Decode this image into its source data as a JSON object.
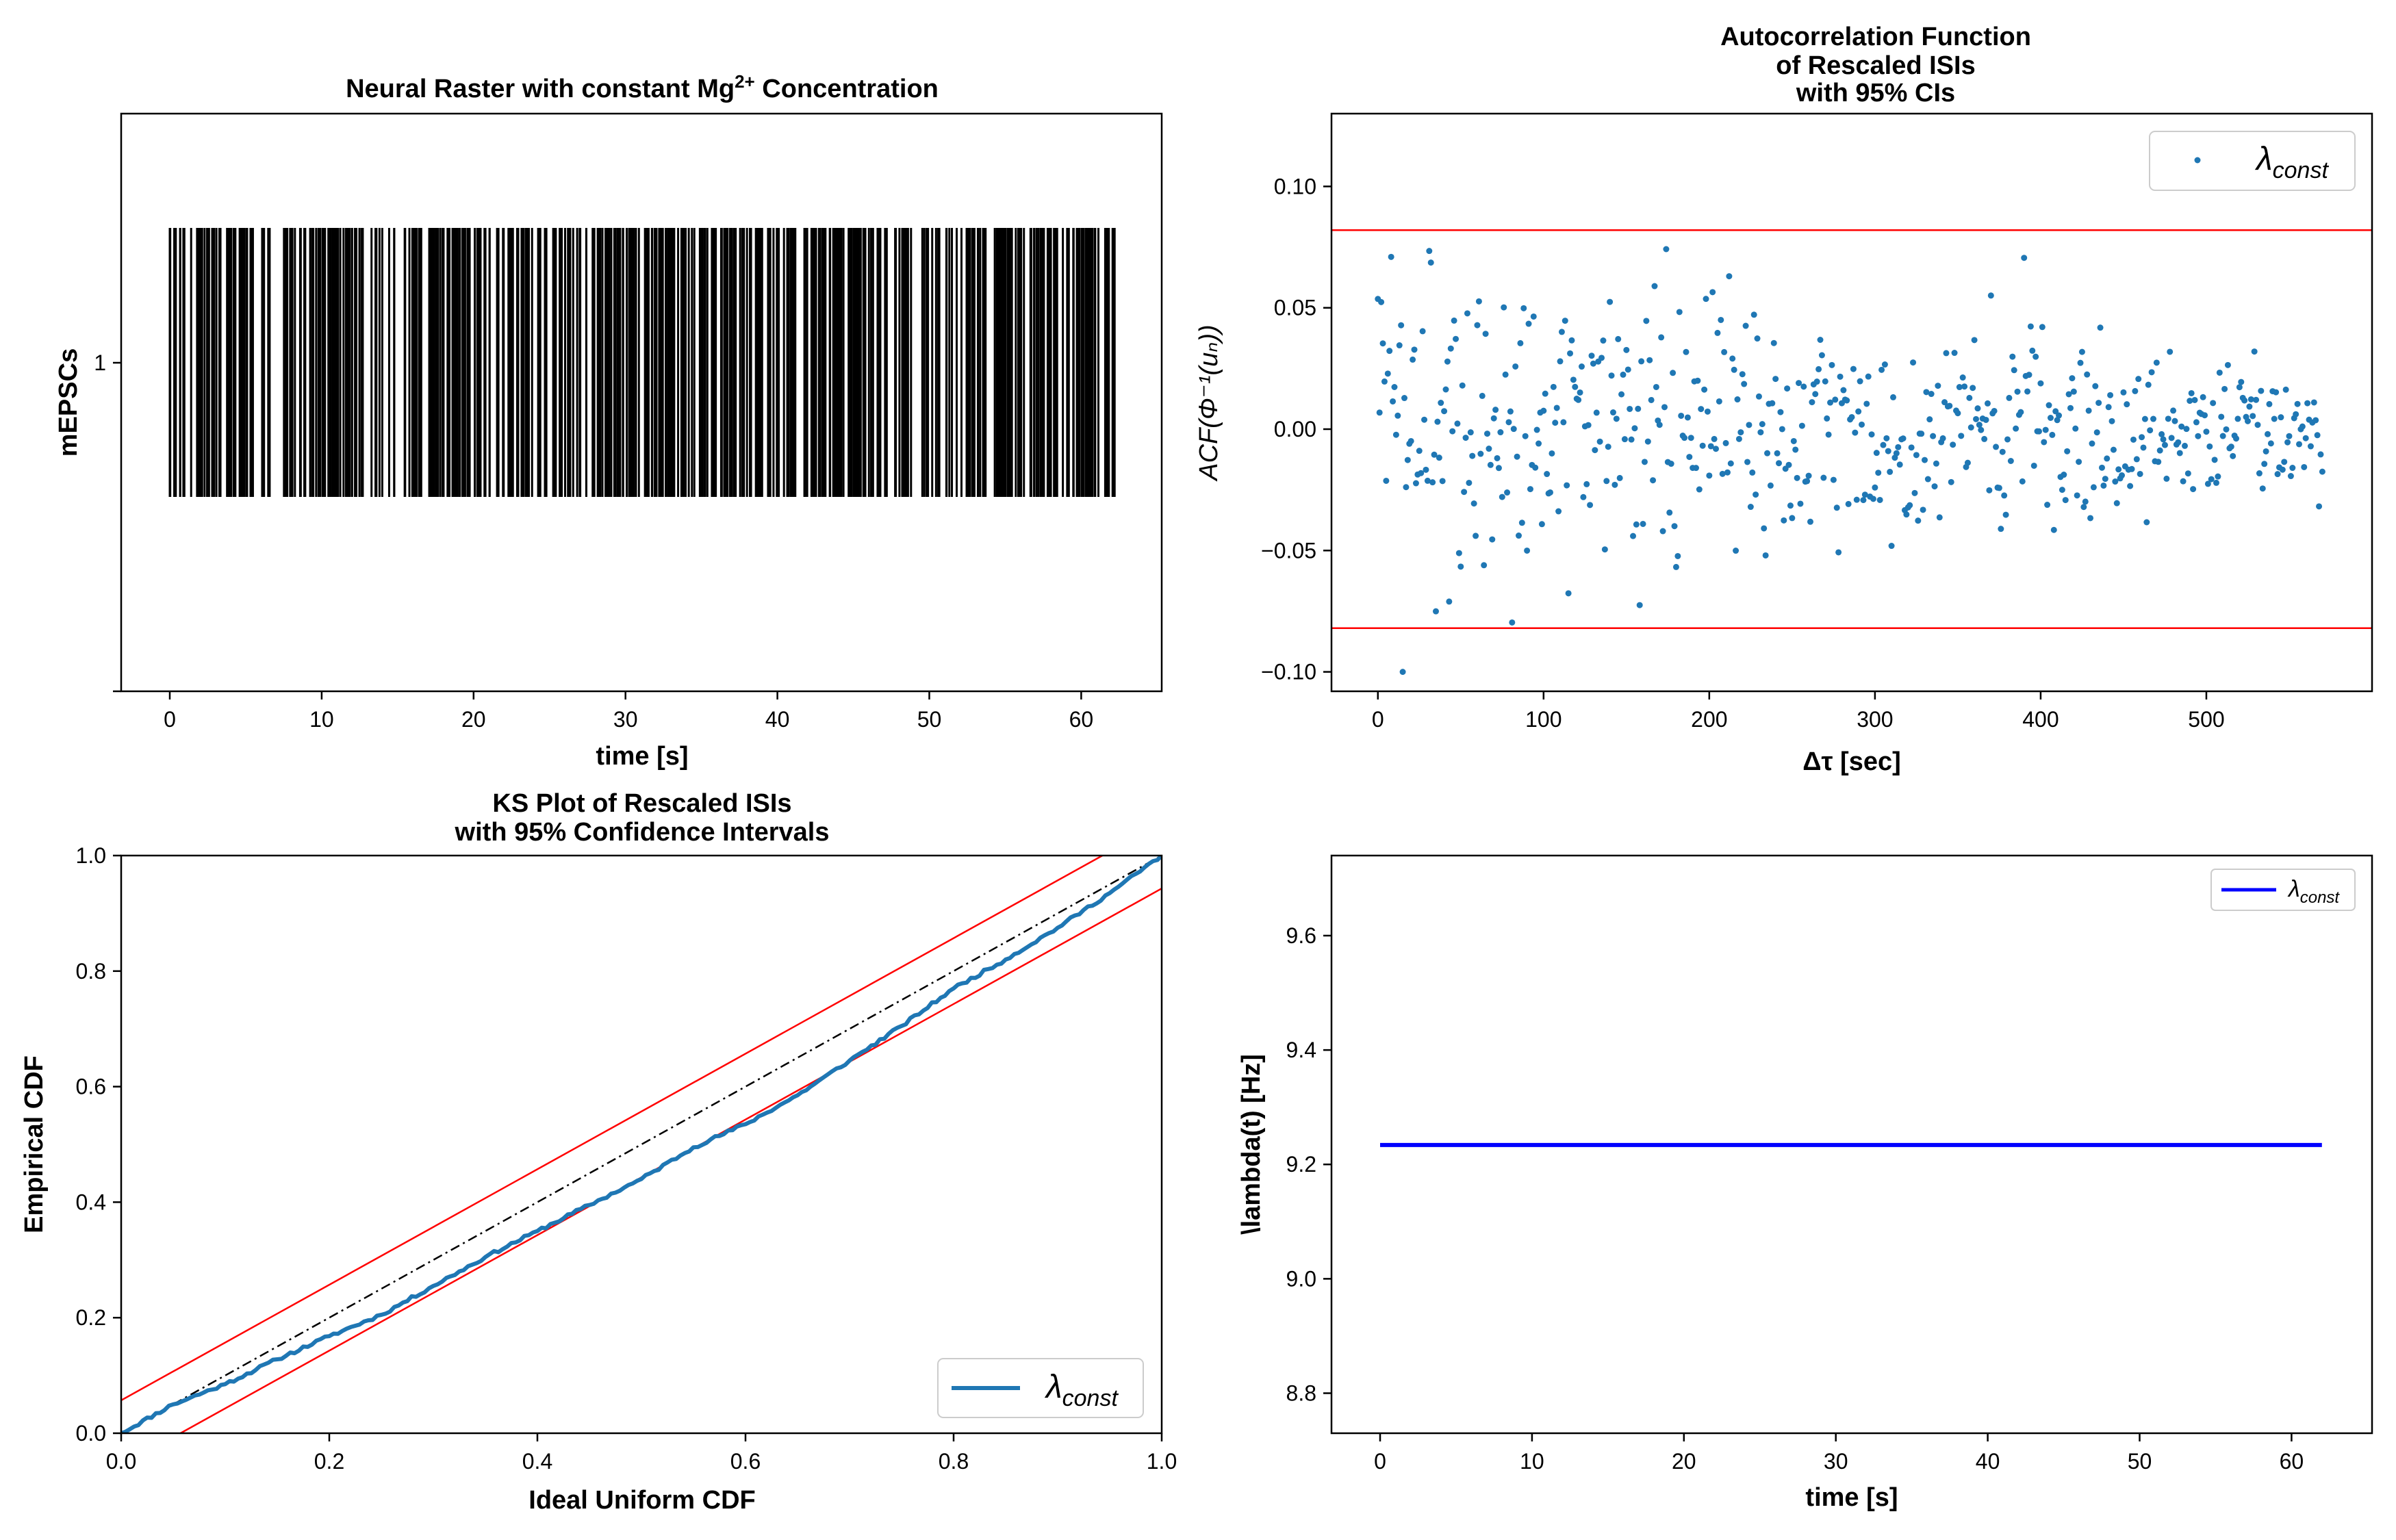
{
  "chart_data": [
    {
      "id": "raster",
      "type": "raster",
      "title": "Neural Raster with constant Mg²⁺ Concentration",
      "title_main": "Neural Raster with constant Mg",
      "title_sup": "2+",
      "title_end": " Concentration",
      "xlabel": "time [s]",
      "ylabel": "mEPSCs",
      "xlim": [
        -3.2,
        65.3
      ],
      "xticks": [
        0,
        10,
        20,
        30,
        40,
        50,
        60
      ],
      "yticks": [
        1
      ],
      "spike_span": [
        0,
        62.2
      ],
      "color": "#000000"
    },
    {
      "id": "acf",
      "type": "scatter",
      "title_lines": [
        "Autocorrelation Function",
        "of Rescaled ISIs",
        "with 95% CIs"
      ],
      "xlabel": "Δτ [sec]",
      "ylabel": "ACF(Φ⁻¹(uₙ))",
      "xlim": [
        -28,
        600
      ],
      "ylim": [
        -0.108,
        0.13
      ],
      "xticks": [
        0,
        100,
        200,
        300,
        400,
        500
      ],
      "yticks": [
        -0.1,
        -0.05,
        0.0,
        0.05,
        0.1
      ],
      "ytick_labels": [
        "−0.10",
        "−0.05",
        "0.00",
        "0.05",
        "0.10"
      ],
      "ci_bounds": [
        0.082,
        -0.082
      ],
      "x_range": [
        0,
        570
      ],
      "n_points": 571,
      "series": [
        {
          "name": "λconst",
          "legend_main": "λ",
          "legend_sub": "const",
          "color": "#1f77b4"
        }
      ],
      "legend_position": "upper-right",
      "ci_color": "#ff0000"
    },
    {
      "id": "ks",
      "type": "line",
      "title_lines": [
        "KS Plot of Rescaled ISIs",
        "with 95% Confidence Intervals"
      ],
      "xlabel": "Ideal Uniform CDF",
      "ylabel": "Empirical CDF",
      "xlim": [
        0,
        1
      ],
      "ylim": [
        0,
        1
      ],
      "xticks": [
        0.0,
        0.2,
        0.4,
        0.6,
        0.8,
        1.0
      ],
      "yticks": [
        0.0,
        0.2,
        0.4,
        0.6,
        0.8,
        1.0
      ],
      "tick_labels": [
        "0.0",
        "0.2",
        "0.4",
        "0.6",
        "0.8",
        "1.0"
      ],
      "ci_offset": 0.057,
      "series": [
        {
          "name": "λconst",
          "legend_main": "λ",
          "legend_sub": "const",
          "color": "#1f77b4",
          "x": [
            0.0,
            0.05,
            0.1,
            0.15,
            0.2,
            0.25,
            0.3,
            0.35,
            0.4,
            0.45,
            0.5,
            0.55,
            0.6,
            0.65,
            0.7,
            0.75,
            0.8,
            0.85,
            0.9,
            0.95,
            1.0
          ],
          "y": [
            0.0,
            0.05,
            0.085,
            0.128,
            0.168,
            0.205,
            0.255,
            0.305,
            0.35,
            0.395,
            0.44,
            0.495,
            0.535,
            0.585,
            0.645,
            0.705,
            0.77,
            0.82,
            0.875,
            0.935,
            1.0
          ]
        }
      ],
      "diagonal": true,
      "legend_position": "lower-right",
      "ci_color": "#ff0000"
    },
    {
      "id": "rate",
      "type": "line",
      "xlabel": "time [s]",
      "ylabel": "\\lambda(t) [Hz]",
      "xlim": [
        -3.2,
        65.3
      ],
      "ylim": [
        8.73,
        9.74
      ],
      "xticks": [
        0,
        10,
        20,
        30,
        40,
        50,
        60
      ],
      "yticks": [
        8.8,
        9.0,
        9.2,
        9.4,
        9.6
      ],
      "ytick_labels": [
        "8.8",
        "9.0",
        "9.2",
        "9.4",
        "9.6"
      ],
      "series": [
        {
          "name": "λconst",
          "legend_main": "λ",
          "legend_sub": "const",
          "color": "#0000ff",
          "x": [
            0,
            62
          ],
          "y": [
            9.234,
            9.234
          ]
        }
      ],
      "legend_position": "upper-right"
    }
  ]
}
